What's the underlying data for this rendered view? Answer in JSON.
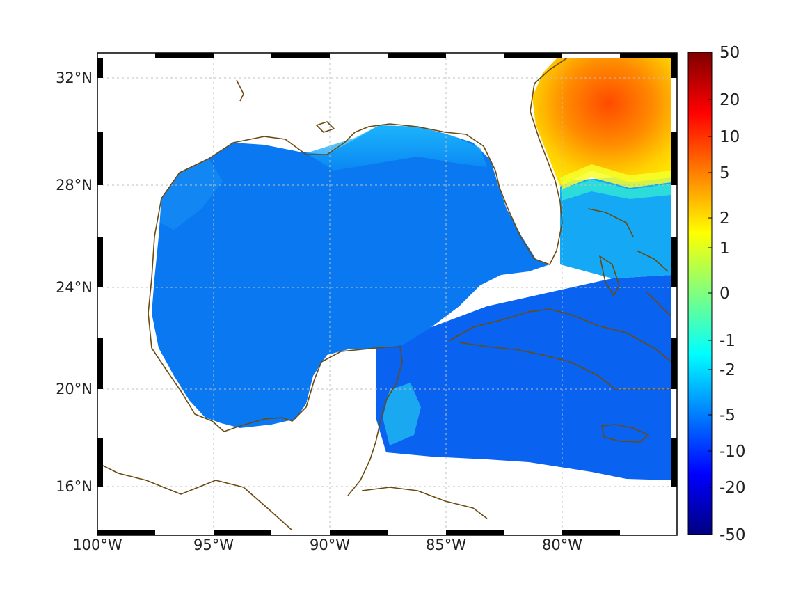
{
  "map": {
    "lat_labels": [
      "32°N",
      "28°N",
      "24°N",
      "20°N",
      "16°N"
    ],
    "lat_values": [
      32,
      28,
      24,
      20,
      16
    ],
    "lon_labels": [
      "100°W",
      "95°W",
      "90°W",
      "85°W",
      "80°W"
    ],
    "lon_values": [
      -100,
      -95,
      -90,
      -85,
      -80
    ],
    "extent": {
      "lon": [
        -100,
        -75
      ],
      "lat": [
        14.5,
        33
      ]
    },
    "coastline_color": "#6b4a10",
    "grid": true
  },
  "colorbar": {
    "labels": [
      "50",
      "20",
      "10",
      "5",
      "2",
      "1",
      "0",
      "-1",
      "-2",
      "-5",
      "-10",
      "-20",
      "-50"
    ],
    "colormap": "jet",
    "orientation": "vertical",
    "placement": "right"
  }
}
